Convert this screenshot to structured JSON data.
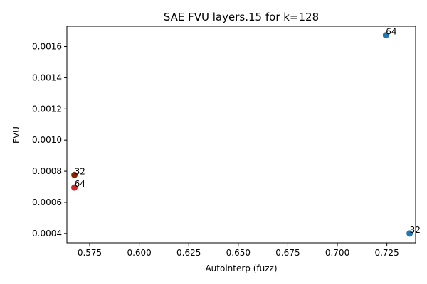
{
  "chart_data": {
    "type": "scatter",
    "title": "SAE FVU layers.15 for k=128",
    "xlabel": "Autointerp (fuzz)",
    "ylabel": "FVU",
    "xlim": [
      0.5635,
      0.7395
    ],
    "ylim": [
      0.00034,
      0.00173
    ],
    "xticks": [
      {
        "value": 0.575,
        "label": "0.575"
      },
      {
        "value": 0.6,
        "label": "0.600"
      },
      {
        "value": 0.625,
        "label": "0.625"
      },
      {
        "value": 0.65,
        "label": "0.650"
      },
      {
        "value": 0.675,
        "label": "0.675"
      },
      {
        "value": 0.7,
        "label": "0.700"
      },
      {
        "value": 0.725,
        "label": "0.725"
      }
    ],
    "yticks": [
      {
        "value": 0.0004,
        "label": "0.0004"
      },
      {
        "value": 0.0006,
        "label": "0.0006"
      },
      {
        "value": 0.0008,
        "label": "0.0008"
      },
      {
        "value": 0.001,
        "label": "0.0010"
      },
      {
        "value": 0.0012,
        "label": "0.0012"
      },
      {
        "value": 0.0014,
        "label": "0.0014"
      },
      {
        "value": 0.0016,
        "label": "0.0016"
      }
    ],
    "points": [
      {
        "x": 0.7245,
        "y": 0.001672,
        "label": "64",
        "color": "#1f77b4"
      },
      {
        "x": 0.7365,
        "y": 0.0004,
        "label": "32",
        "color": "#1f77b4"
      },
      {
        "x": 0.5673,
        "y": 0.000776,
        "label": "32",
        "color": "#8b2500"
      },
      {
        "x": 0.5673,
        "y": 0.000695,
        "label": "64",
        "color": "#d62728"
      }
    ],
    "grid": false,
    "legend": "none"
  }
}
